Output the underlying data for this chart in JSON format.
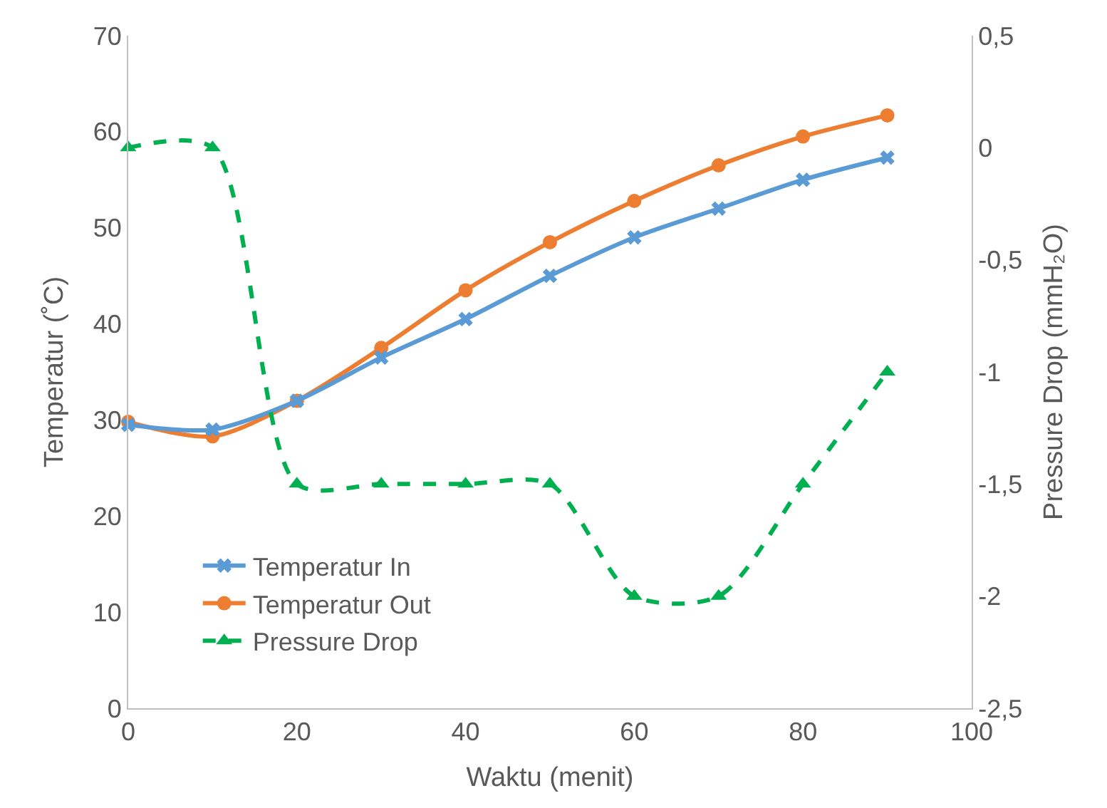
{
  "chart_data": {
    "type": "line",
    "xlabel": "Waktu (menit)",
    "ylabel": "Temperatur (˚C)",
    "y2label": "Pressure Drop (mmH₂O)",
    "x": [
      0,
      10,
      20,
      30,
      40,
      50,
      60,
      70,
      80,
      90
    ],
    "xlim": [
      0,
      100
    ],
    "xticks": [
      0,
      20,
      40,
      60,
      80,
      100
    ],
    "ylim": [
      0,
      70
    ],
    "yticks": [
      0,
      10,
      20,
      30,
      40,
      50,
      60,
      70
    ],
    "y2lim": [
      -2.5,
      0.5
    ],
    "y2ticks": [
      {
        "value": -2.5,
        "label": "-2,5"
      },
      {
        "value": -2,
        "label": "-2"
      },
      {
        "value": -1.5,
        "label": "-1,5"
      },
      {
        "value": -1,
        "label": "-1"
      },
      {
        "value": -0.5,
        "label": "-0,5"
      },
      {
        "value": 0,
        "label": "0"
      },
      {
        "value": 0.5,
        "label": "0,5"
      }
    ],
    "grid": false,
    "legend": "bottom left",
    "series": [
      {
        "name": "Temperatur In",
        "color": "#5b9bd5",
        "marker": "cross",
        "line_style": "solid",
        "values": [
          29.5,
          29,
          32,
          36.5,
          40.5,
          45,
          49,
          52,
          55,
          57.3
        ]
      },
      {
        "name": "Temperatur Out",
        "color": "#ed7d31",
        "marker": "circle",
        "line_style": "solid",
        "values": [
          29.8,
          28.3,
          32,
          37.5,
          43.5,
          48.5,
          52.8,
          56.5,
          59.5,
          61.7
        ]
      },
      {
        "name": "Pressure Drop",
        "color": "#00b050",
        "marker": "triangle",
        "line_style": "dashed",
        "axis": "y2",
        "values": [
          0,
          0,
          -1.5,
          -1.5,
          -1.5,
          -1.5,
          -2,
          -2,
          -1.5,
          -1
        ]
      }
    ]
  }
}
